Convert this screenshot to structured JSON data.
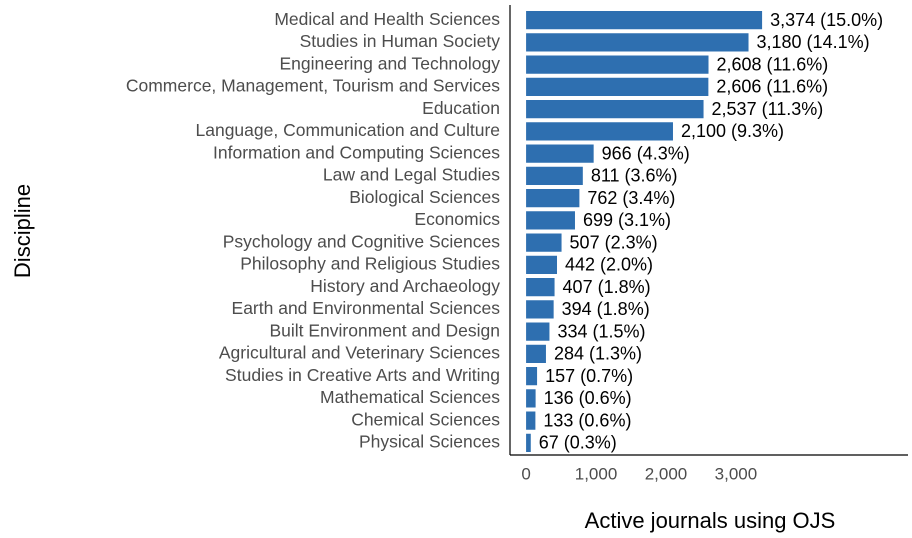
{
  "chart_data": {
    "type": "bar",
    "orientation": "horizontal",
    "x_label": "Active journals using OJS",
    "y_label": "Discipline",
    "categories": [
      "Medical and Health Sciences",
      "Studies in Human Society",
      "Engineering and Technology",
      "Commerce, Management, Tourism and Services",
      "Education",
      "Language, Communication and Culture",
      "Information and Computing Sciences",
      "Law and Legal Studies",
      "Biological Sciences",
      "Economics",
      "Psychology and Cognitive Sciences",
      "Philosophy and Religious Studies",
      "History and Archaeology",
      "Earth and Environmental Sciences",
      "Built Environment and Design",
      "Agricultural and Veterinary Sciences",
      "Studies in Creative Arts and Writing",
      "Mathematical Sciences",
      "Chemical Sciences",
      "Physical Sciences"
    ],
    "values": [
      3374,
      3180,
      2608,
      2606,
      2537,
      2100,
      966,
      811,
      762,
      699,
      507,
      442,
      407,
      394,
      334,
      284,
      157,
      136,
      133,
      67
    ],
    "value_labels": [
      "3,374 (15.0%)",
      "3,180 (14.1%)",
      "2,608 (11.6%)",
      "2,606 (11.6%)",
      "2,537 (11.3%)",
      "2,100 (9.3%)",
      "966 (4.3%)",
      "811 (3.6%)",
      "762 (3.4%)",
      "699 (3.1%)",
      "507 (2.3%)",
      "442 (2.0%)",
      "407 (1.8%)",
      "394 (1.8%)",
      "334 (1.5%)",
      "284 (1.3%)",
      "157 (0.7%)",
      "136 (0.6%)",
      "133 (0.6%)",
      "67 (0.3%)"
    ],
    "color": "#2e6fb0",
    "xlim": [
      -230,
      5460
    ],
    "xticks": [
      0,
      {
        "value": 1000,
        "label": "1,000"
      },
      {
        "value": 2000,
        "label": "2,000"
      },
      {
        "value": 3000,
        "label": "3,000"
      }
    ]
  }
}
